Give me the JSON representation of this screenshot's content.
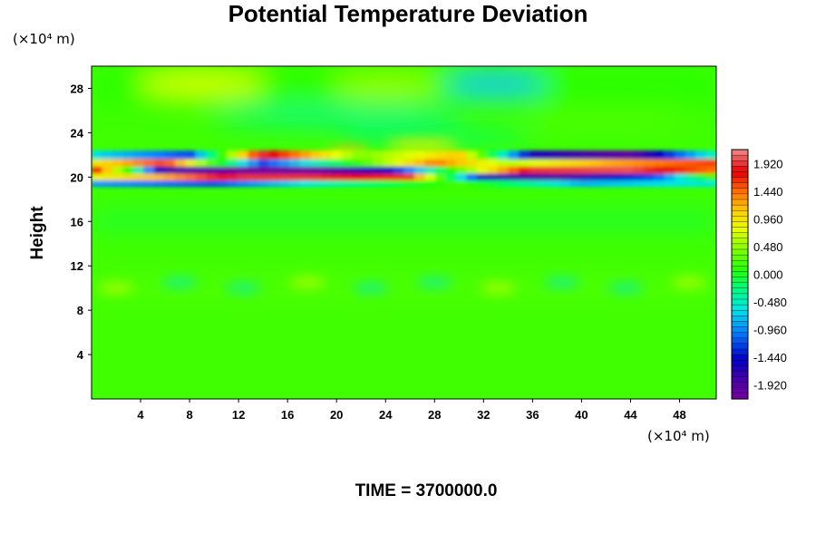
{
  "chart_data": {
    "type": "heatmap",
    "title": "Potential Temperature Deviation",
    "ylabel": "Height",
    "y_unit": "(×10⁴ m)",
    "x_unit": "(×10⁴ m)",
    "footer": "TIME = 3700000.0",
    "xlim": [
      0,
      51
    ],
    "ylim": [
      0,
      30
    ],
    "x_ticks": [
      "4",
      "8",
      "12",
      "16",
      "20",
      "24",
      "28",
      "32",
      "36",
      "40",
      "44",
      "48"
    ],
    "y_ticks": [
      "4",
      "8",
      "12",
      "16",
      "20",
      "24",
      "28"
    ],
    "colorbar": {
      "range": [
        -2.16,
        2.16
      ],
      "labels": [
        "1.920",
        "1.440",
        "0.960",
        "0.480",
        "0.000",
        "-0.480",
        "-0.960",
        "-1.440",
        "-1.920"
      ]
    },
    "field_features": [
      {
        "kind": "band",
        "y_center": 20.4,
        "x_range": [
          0,
          51
        ],
        "amplitude": 2.0,
        "description_value": "strong dipole layer"
      },
      {
        "kind": "band",
        "y_center": 28.4,
        "x_range": [
          0,
          51
        ],
        "amplitude": 0.35
      },
      {
        "kind": "band",
        "y_center": 10.0,
        "x_range": [
          0,
          51
        ],
        "amplitude": 0.4
      }
    ]
  }
}
